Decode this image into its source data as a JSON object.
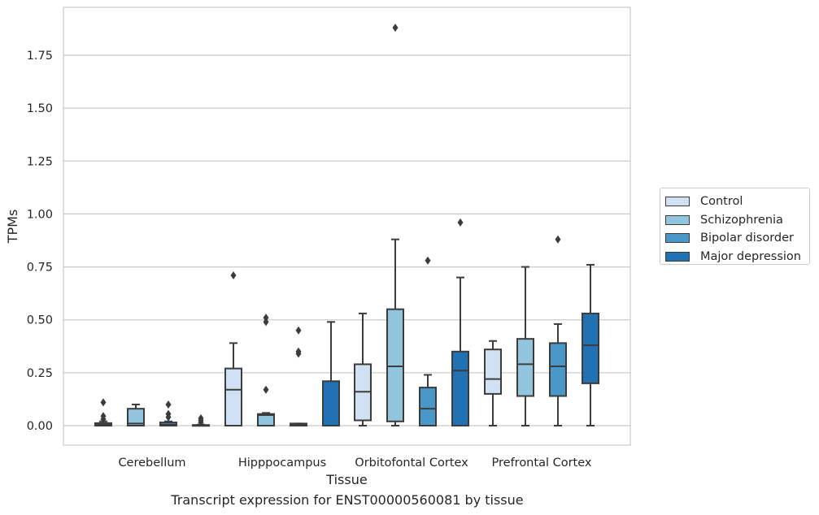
{
  "chart_data": {
    "type": "box",
    "xlabel": "Tissue",
    "ylabel": "TPMs",
    "caption": "Transcript expression for ENST00000560081 by tissue",
    "categories": [
      "Cerebellum",
      "Hipppocampus",
      "Orbitofontal Cortex",
      "Prefrontal Cortex"
    ],
    "ylim": [
      -0.09,
      1.97
    ],
    "yticks": [
      "0.00",
      "0.25",
      "0.50",
      "0.75",
      "1.00",
      "1.25",
      "1.50",
      "1.75"
    ],
    "grid": "horizontal",
    "legend_position": "right",
    "series": [
      {
        "name": "Control",
        "color": "#cfe1f2",
        "boxes": [
          {
            "whislo": 0,
            "q1": 0,
            "med": 0.005,
            "q3": 0.012,
            "whishi": 0.02,
            "fliers": [
              0.03,
              0.045,
              0.11
            ]
          },
          {
            "whislo": 0,
            "q1": 0,
            "med": 0.17,
            "q3": 0.27,
            "whishi": 0.39,
            "fliers": [
              0.71
            ]
          },
          {
            "whislo": 0,
            "q1": 0.025,
            "med": 0.16,
            "q3": 0.29,
            "whishi": 0.53,
            "fliers": []
          },
          {
            "whislo": 0,
            "q1": 0.15,
            "med": 0.22,
            "q3": 0.36,
            "whishi": 0.4,
            "fliers": []
          }
        ]
      },
      {
        "name": "Schizophrenia",
        "color": "#93c4de",
        "boxes": [
          {
            "whislo": 0,
            "q1": 0,
            "med": 0.01,
            "q3": 0.08,
            "whishi": 0.1,
            "fliers": []
          },
          {
            "whislo": 0,
            "q1": 0,
            "med": 0.05,
            "q3": 0.055,
            "whishi": 0.06,
            "fliers": [
              0.17,
              0.49,
              0.51
            ]
          },
          {
            "whislo": 0,
            "q1": 0.02,
            "med": 0.28,
            "q3": 0.55,
            "whishi": 0.88,
            "fliers": [
              1.88
            ]
          },
          {
            "whislo": 0,
            "q1": 0.14,
            "med": 0.29,
            "q3": 0.41,
            "whishi": 0.75,
            "fliers": []
          }
        ]
      },
      {
        "name": "Bipolar disorder",
        "color": "#4a98c9",
        "boxes": [
          {
            "whislo": 0,
            "q1": 0,
            "med": 0.005,
            "q3": 0.015,
            "whishi": 0.02,
            "fliers": [
              0.04,
              0.055,
              0.1
            ]
          },
          {
            "whislo": 0,
            "q1": 0,
            "med": 0.005,
            "q3": 0.01,
            "whishi": 0.01,
            "fliers": [
              0.34,
              0.35,
              0.45
            ]
          },
          {
            "whislo": 0,
            "q1": 0,
            "med": 0.08,
            "q3": 0.18,
            "whishi": 0.24,
            "fliers": [
              0.78
            ]
          },
          {
            "whislo": 0,
            "q1": 0.14,
            "med": 0.28,
            "q3": 0.39,
            "whishi": 0.48,
            "fliers": [
              0.88
            ]
          }
        ]
      },
      {
        "name": "Major depression",
        "color": "#2171b5",
        "boxes": [
          {
            "whislo": 0,
            "q1": 0,
            "med": 0,
            "q3": 0.003,
            "whishi": 0.005,
            "fliers": [
              0.015,
              0.025,
              0.035
            ]
          },
          {
            "whislo": 0,
            "q1": 0,
            "med": 0,
            "q3": 0.21,
            "whishi": 0.49,
            "fliers": []
          },
          {
            "whislo": 0,
            "q1": 0,
            "med": 0.26,
            "q3": 0.35,
            "whishi": 0.7,
            "fliers": [
              0.96
            ]
          },
          {
            "whislo": 0,
            "q1": 0.2,
            "med": 0.38,
            "q3": 0.53,
            "whishi": 0.76,
            "fliers": []
          }
        ]
      }
    ]
  }
}
